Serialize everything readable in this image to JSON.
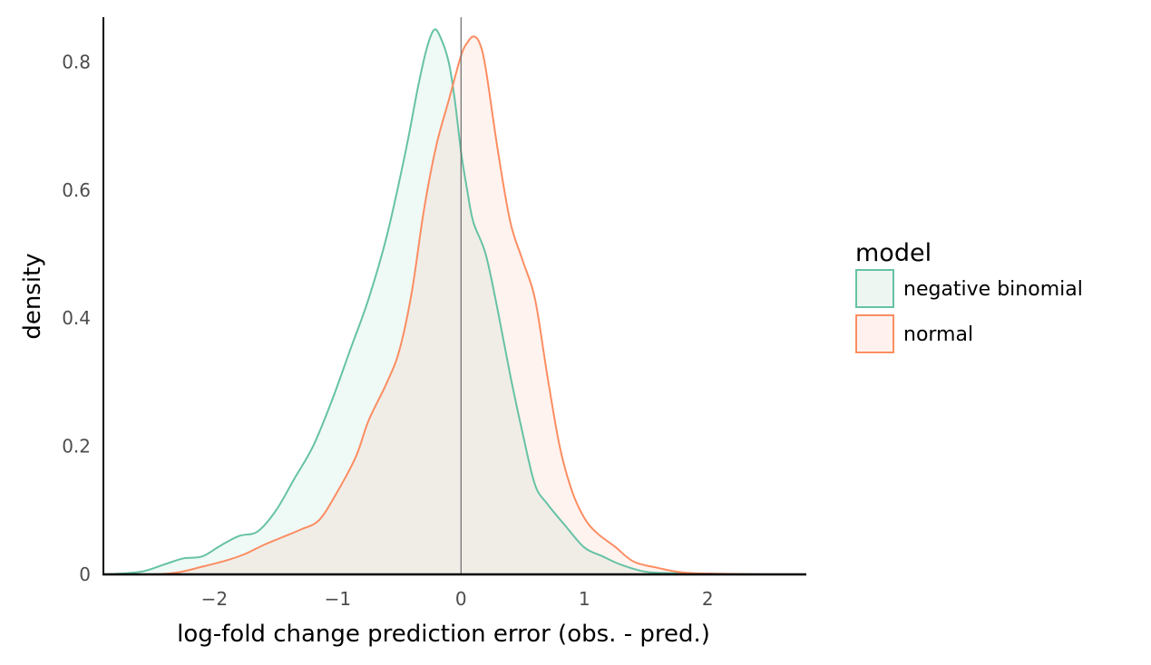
{
  "chart_data": {
    "type": "area",
    "title": "",
    "xlabel": "log-fold change prediction error (obs. - pred.)",
    "ylabel": "density",
    "xlim": [
      -2.9,
      2.8
    ],
    "ylim": [
      0,
      0.87
    ],
    "x_ticks": [
      -2,
      -1,
      0,
      1,
      2
    ],
    "x_tick_labels": [
      "−2",
      "−1",
      "0",
      "1",
      "2"
    ],
    "y_ticks": [
      0,
      0.2,
      0.4,
      0.6,
      0.8
    ],
    "y_tick_labels": [
      "0",
      "0.2",
      "0.4",
      "0.6",
      "0.8"
    ],
    "reference_line_x": 0,
    "grid": false,
    "legend": {
      "title": "model",
      "position": "right"
    },
    "series": [
      {
        "name": "negative binomial",
        "color": "#66c2a5",
        "fill": "#eef6f1",
        "points": [
          [
            -2.9,
            0
          ],
          [
            -2.6,
            0.004
          ],
          [
            -2.4,
            0.016
          ],
          [
            -2.25,
            0.025
          ],
          [
            -2.1,
            0.028
          ],
          [
            -1.95,
            0.045
          ],
          [
            -1.8,
            0.06
          ],
          [
            -1.65,
            0.067
          ],
          [
            -1.5,
            0.1
          ],
          [
            -1.35,
            0.15
          ],
          [
            -1.2,
            0.2
          ],
          [
            -1.05,
            0.27
          ],
          [
            -0.9,
            0.35
          ],
          [
            -0.75,
            0.43
          ],
          [
            -0.6,
            0.53
          ],
          [
            -0.45,
            0.66
          ],
          [
            -0.35,
            0.76
          ],
          [
            -0.28,
            0.82
          ],
          [
            -0.22,
            0.85
          ],
          [
            -0.17,
            0.84
          ],
          [
            -0.1,
            0.8
          ],
          [
            -0.05,
            0.74
          ],
          [
            0.0,
            0.66
          ],
          [
            0.05,
            0.6
          ],
          [
            0.1,
            0.55
          ],
          [
            0.2,
            0.5
          ],
          [
            0.3,
            0.41
          ],
          [
            0.4,
            0.31
          ],
          [
            0.5,
            0.22
          ],
          [
            0.6,
            0.14
          ],
          [
            0.7,
            0.11
          ],
          [
            0.85,
            0.075
          ],
          [
            1.0,
            0.042
          ],
          [
            1.15,
            0.028
          ],
          [
            1.3,
            0.015
          ],
          [
            1.5,
            0.004
          ],
          [
            1.7,
            0.002
          ],
          [
            2.0,
            0.001
          ],
          [
            2.4,
            0
          ],
          [
            2.8,
            0
          ]
        ]
      },
      {
        "name": "normal",
        "color": "#fc8d62",
        "fill": "#fff2ee",
        "points": [
          [
            -2.9,
            0
          ],
          [
            -2.5,
            0.0
          ],
          [
            -2.3,
            0.003
          ],
          [
            -2.1,
            0.012
          ],
          [
            -1.9,
            0.022
          ],
          [
            -1.75,
            0.032
          ],
          [
            -1.6,
            0.046
          ],
          [
            -1.45,
            0.058
          ],
          [
            -1.3,
            0.07
          ],
          [
            -1.15,
            0.085
          ],
          [
            -1.0,
            0.13
          ],
          [
            -0.85,
            0.185
          ],
          [
            -0.75,
            0.24
          ],
          [
            -0.6,
            0.3
          ],
          [
            -0.5,
            0.35
          ],
          [
            -0.4,
            0.44
          ],
          [
            -0.3,
            0.57
          ],
          [
            -0.2,
            0.67
          ],
          [
            -0.1,
            0.74
          ],
          [
            0.0,
            0.81
          ],
          [
            0.05,
            0.83
          ],
          [
            0.1,
            0.84
          ],
          [
            0.15,
            0.83
          ],
          [
            0.2,
            0.79
          ],
          [
            0.3,
            0.66
          ],
          [
            0.4,
            0.55
          ],
          [
            0.5,
            0.49
          ],
          [
            0.6,
            0.43
          ],
          [
            0.7,
            0.31
          ],
          [
            0.8,
            0.2
          ],
          [
            0.9,
            0.13
          ],
          [
            1.0,
            0.088
          ],
          [
            1.1,
            0.065
          ],
          [
            1.25,
            0.043
          ],
          [
            1.4,
            0.02
          ],
          [
            1.6,
            0.01
          ],
          [
            1.8,
            0.003
          ],
          [
            2.1,
            0.001
          ],
          [
            2.5,
            0
          ],
          [
            2.8,
            0
          ]
        ]
      }
    ]
  }
}
